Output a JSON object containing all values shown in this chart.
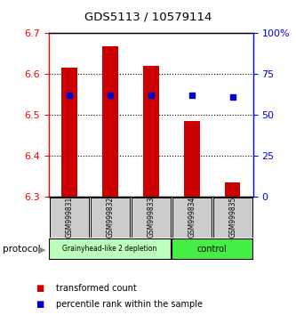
{
  "title": "GDS5113 / 10579114",
  "samples": [
    "GSM999831",
    "GSM999832",
    "GSM999833",
    "GSM999834",
    "GSM999835"
  ],
  "bar_tops": [
    6.615,
    6.668,
    6.62,
    6.485,
    6.335
  ],
  "bar_base": 6.3,
  "percentile_values": [
    6.548,
    6.548,
    6.548,
    6.548,
    6.543
  ],
  "ylim_left": [
    6.3,
    6.7
  ],
  "ylim_right": [
    0,
    100
  ],
  "yticks_left": [
    6.3,
    6.4,
    6.5,
    6.6,
    6.7
  ],
  "yticks_right": [
    0,
    25,
    50,
    75,
    100
  ],
  "ytick_labels_right": [
    "0",
    "25",
    "50",
    "75",
    "100%"
  ],
  "bar_color": "#cc0000",
  "percentile_color": "#0000cc",
  "group1_label": "Grainyhead-like 2 depletion",
  "group2_label": "control",
  "group1_color": "#bbffbb",
  "group2_color": "#44ee44",
  "protocol_label": "protocol",
  "legend_red_label": "transformed count",
  "legend_blue_label": "percentile rank within the sample",
  "bg_color": "#ffffff",
  "tick_area_color": "#cccccc"
}
